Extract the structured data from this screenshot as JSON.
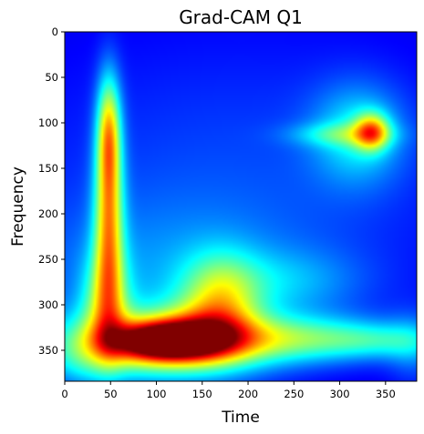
{
  "chart_data": {
    "type": "heatmap",
    "title": "Grad-CAM Q1",
    "xlabel": "Time",
    "ylabel": "Frequency",
    "xlim": [
      0,
      384
    ],
    "ylim": [
      384,
      0
    ],
    "y_axis_inverted": true,
    "colormap": "jet",
    "value_range": [
      0,
      1
    ],
    "grid": false,
    "legend": "none",
    "x_ticks": [
      0,
      50,
      100,
      150,
      200,
      250,
      300,
      350
    ],
    "y_ticks": [
      0,
      50,
      100,
      150,
      200,
      250,
      300,
      350
    ],
    "hotspots": [
      {
        "x": 110,
        "y": 340,
        "sx": 38,
        "sy": 14,
        "value": 0.72
      },
      {
        "x": 100,
        "y": 345,
        "sx": 80,
        "sy": 28,
        "value": 0.42
      },
      {
        "x": 155,
        "y": 330,
        "sx": 35,
        "sy": 22,
        "value": 0.18
      },
      {
        "x": 170,
        "y": 295,
        "sx": 30,
        "sy": 35,
        "value": 0.32
      },
      {
        "x": 250,
        "y": 338,
        "sx": 95,
        "sy": 18,
        "value": 0.32
      },
      {
        "x": 345,
        "y": 340,
        "sx": 40,
        "sy": 12,
        "value": 0.1
      },
      {
        "x": 48,
        "y": 110,
        "sx": 9,
        "sy": 45,
        "value": 0.42
      },
      {
        "x": 48,
        "y": 210,
        "sx": 11,
        "sy": 70,
        "value": 0.48
      },
      {
        "x": 45,
        "y": 300,
        "sx": 18,
        "sy": 40,
        "value": 0.3
      },
      {
        "x": 100,
        "y": 270,
        "sx": 120,
        "sy": 60,
        "value": 0.12
      },
      {
        "x": 240,
        "y": 275,
        "sx": 60,
        "sy": 25,
        "value": 0.12
      },
      {
        "x": 335,
        "y": 110,
        "sx": 13,
        "sy": 14,
        "value": 0.42
      },
      {
        "x": 300,
        "y": 113,
        "sx": 38,
        "sy": 9,
        "value": 0.16
      },
      {
        "x": 320,
        "y": 112,
        "sx": 35,
        "sy": 38,
        "value": 0.22
      },
      {
        "x": 190,
        "y": 160,
        "sx": 200,
        "sy": 120,
        "value": 0.1
      },
      {
        "x": 15,
        "y": 360,
        "sx": 25,
        "sy": 25,
        "value": 0.1
      },
      {
        "x": 380,
        "y": 350,
        "sx": 20,
        "sy": 30,
        "value": 0.1
      }
    ]
  }
}
